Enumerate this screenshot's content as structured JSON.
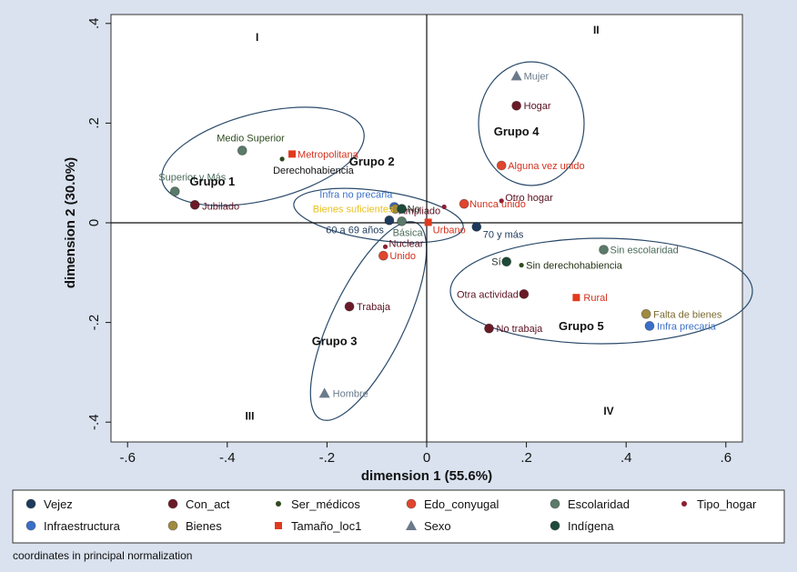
{
  "note": "coordinates in principal normalization",
  "chart_data": {
    "type": "scatter",
    "xlabel": "dimension 1 (55.6%)",
    "ylabel": "dimension 2 (30.0%)",
    "xlim": [
      -0.6,
      0.6
    ],
    "ylim": [
      -0.4,
      0.4
    ],
    "x_ticks": [
      "-.6",
      "-.4",
      "-.2",
      "0",
      ".2",
      ".4",
      ".6"
    ],
    "y_ticks": [
      ".4",
      ".2",
      "0",
      "-.2",
      "-.4"
    ],
    "grid": false,
    "legend_position": "bottom",
    "categories": [
      {
        "name": "Vejez",
        "color": "#1e3a5c",
        "marker": "circle"
      },
      {
        "name": "Con_act",
        "color": "#6b1a28",
        "marker": "circle"
      },
      {
        "name": "Ser_médicos",
        "color": "#2e4a1e",
        "marker": "small-circle"
      },
      {
        "name": "Edo_conyugal",
        "color": "#e0452e",
        "marker": "circle"
      },
      {
        "name": "Escolaridad",
        "color": "#5a7a6a",
        "marker": "circle"
      },
      {
        "name": "Tipo_hogar",
        "color": "#8a2030",
        "marker": "small-circle"
      },
      {
        "name": "Infraestructura",
        "color": "#3a6fc8",
        "marker": "circle"
      },
      {
        "name": "Bienes",
        "color": "#a08a40",
        "marker": "circle"
      },
      {
        "name": "Tamaño_loc1",
        "color": "#e03a1e",
        "marker": "square"
      },
      {
        "name": "Sexo",
        "color": "#6a7a8a",
        "marker": "triangle"
      },
      {
        "name": "Indígena",
        "color": "#1e4a3a",
        "marker": "circle"
      }
    ],
    "points": [
      {
        "label": "Mujer",
        "category": "Sexo",
        "x": 0.18,
        "y": 0.295
      },
      {
        "label": "Hogar",
        "category": "Con_act",
        "x": 0.18,
        "y": 0.235
      },
      {
        "label": "Medio Superior",
        "category": "Escolaridad",
        "x": -0.37,
        "y": 0.145
      },
      {
        "label": "Metropolitana",
        "category": "Tamaño_loc1",
        "x": -0.27,
        "y": 0.138
      },
      {
        "label": "Derechohabiencia",
        "category": "Ser_médicos",
        "x": -0.29,
        "y": 0.128
      },
      {
        "label": "Alguna vez unido",
        "category": "Edo_conyugal",
        "x": 0.15,
        "y": 0.115
      },
      {
        "label": "Superior y Más",
        "category": "Escolaridad",
        "x": -0.505,
        "y": 0.063
      },
      {
        "label": "Jubilado",
        "category": "Con_act",
        "x": -0.465,
        "y": 0.036
      },
      {
        "label": "Otro hogar",
        "category": "Tipo_hogar",
        "x": 0.15,
        "y": 0.044
      },
      {
        "label": "Nunca unido",
        "category": "Edo_conyugal",
        "x": 0.075,
        "y": 0.038
      },
      {
        "label": "Ampliado",
        "category": "Tipo_hogar",
        "x": 0.035,
        "y": 0.032
      },
      {
        "label": "Infra no precaria",
        "category": "Infraestructura",
        "x": -0.065,
        "y": 0.032
      },
      {
        "label": "Bienes suficientes",
        "category": "Bienes",
        "x": -0.063,
        "y": 0.028
      },
      {
        "label": "No",
        "category": "Indígena",
        "x": -0.05,
        "y": 0.028
      },
      {
        "label": "60 a 69 años",
        "category": "Vejez",
        "x": -0.075,
        "y": 0.005
      },
      {
        "label": "Básica",
        "category": "Escolaridad",
        "x": -0.05,
        "y": 0.003
      },
      {
        "label": "Urbano",
        "category": "Tamaño_loc1",
        "x": 0.003,
        "y": 0.001
      },
      {
        "label": "70 y más",
        "category": "Vejez",
        "x": 0.1,
        "y": -0.008
      },
      {
        "label": "Nuclear",
        "category": "Tipo_hogar",
        "x": -0.083,
        "y": -0.048
      },
      {
        "label": "Unido",
        "category": "Edo_conyugal",
        "x": -0.087,
        "y": -0.066
      },
      {
        "label": "Sin escolaridad",
        "category": "Escolaridad",
        "x": 0.355,
        "y": -0.054
      },
      {
        "label": "Sí",
        "category": "Indígena",
        "x": 0.16,
        "y": -0.078
      },
      {
        "label": "Sin derechohabiencia",
        "category": "Ser_médicos",
        "x": 0.19,
        "y": -0.085
      },
      {
        "label": "Otra actividad",
        "category": "Con_act",
        "x": 0.195,
        "y": -0.143
      },
      {
        "label": "Rural",
        "category": "Tamaño_loc1",
        "x": 0.3,
        "y": -0.15
      },
      {
        "label": "Trabaja",
        "category": "Con_act",
        "x": -0.155,
        "y": -0.168
      },
      {
        "label": "Falta de bienes",
        "category": "Bienes",
        "x": 0.44,
        "y": -0.183
      },
      {
        "label": "Infra precaria",
        "category": "Infraestructura",
        "x": 0.447,
        "y": -0.207
      },
      {
        "label": "No trabaja",
        "category": "Con_act",
        "x": 0.125,
        "y": -0.212
      },
      {
        "label": "Hombre",
        "category": "Sexo",
        "x": -0.205,
        "y": -0.342
      }
    ],
    "groups": [
      {
        "label": "Grupo 1",
        "x": -0.43,
        "y": 0.075
      },
      {
        "label": "Grupo 2",
        "x": -0.11,
        "y": 0.115
      },
      {
        "label": "Grupo 3",
        "x": -0.185,
        "y": -0.245
      },
      {
        "label": "Grupo 4",
        "x": 0.18,
        "y": 0.175
      },
      {
        "label": "Grupo 5",
        "x": 0.31,
        "y": -0.215
      }
    ],
    "quadrants": [
      {
        "label": "I",
        "x": -0.34,
        "y": 0.365
      },
      {
        "label": "II",
        "x": 0.34,
        "y": 0.38
      },
      {
        "label": "III",
        "x": -0.355,
        "y": -0.395
      },
      {
        "label": "IV",
        "x": 0.365,
        "y": -0.385
      }
    ]
  }
}
